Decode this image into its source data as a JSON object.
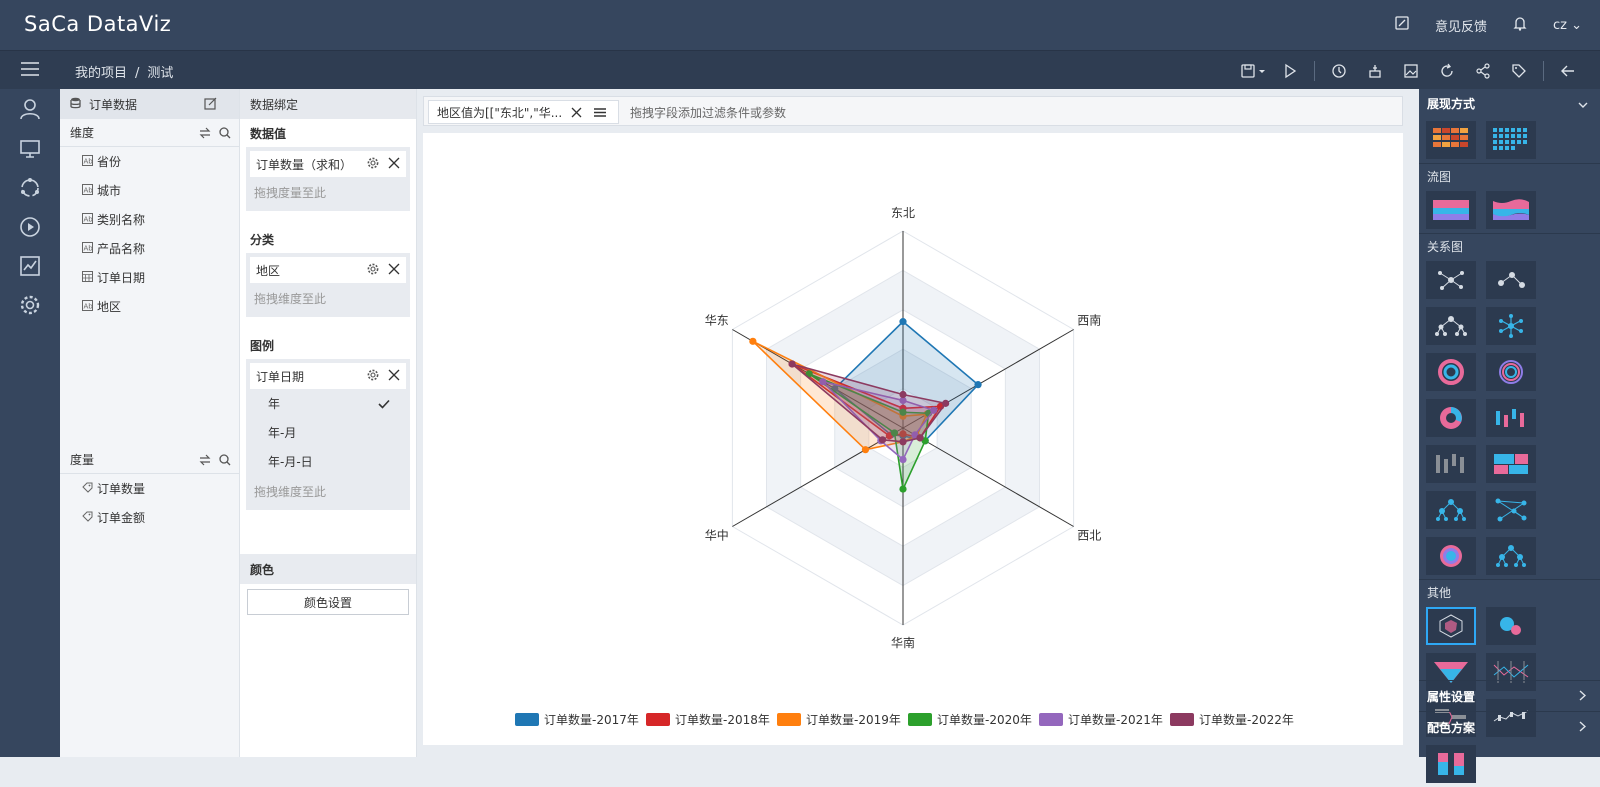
{
  "app": {
    "logo": "SaCa DataViz",
    "feedback": "意见反馈",
    "user": "cz"
  },
  "breadcrumb": {
    "project": "我的项目",
    "sep": "/",
    "current": "测试"
  },
  "fields": {
    "dataset": "订单数据",
    "dimension_title": "维度",
    "dimensions": [
      {
        "label": "省份",
        "icon": "text-field-icon"
      },
      {
        "label": "城市",
        "icon": "text-field-icon"
      },
      {
        "label": "类别名称",
        "icon": "text-field-icon"
      },
      {
        "label": "产品名称",
        "icon": "text-field-icon"
      },
      {
        "label": "订单日期",
        "icon": "date-field-icon"
      },
      {
        "label": "地区",
        "icon": "text-field-icon"
      }
    ],
    "measure_title": "度量",
    "measures": [
      {
        "label": "订单数量",
        "icon": "measure-tag-icon"
      },
      {
        "label": "订单金额",
        "icon": "measure-tag-icon"
      }
    ]
  },
  "binding": {
    "title": "数据绑定",
    "value_title": "数据值",
    "value_chip": "订单数量（求和）",
    "value_hint": "拖拽度量至此",
    "category_title": "分类",
    "category_chip": "地区",
    "category_hint": "拖拽维度至此",
    "legend_title": "图例",
    "legend_chip": "订单日期",
    "legend_options": [
      "年",
      "年-月",
      "年-月-日"
    ],
    "legend_hint": "拖拽维度至此",
    "color_title": "颜色",
    "color_button": "颜色设置"
  },
  "filter": {
    "tag": "地区值为[[\"东北\",\"华...",
    "hint": "拖拽字段添加过滤条件或参数"
  },
  "chart_data": {
    "type": "radar",
    "indicators": [
      "东北",
      "西南",
      "西北",
      "华南",
      "华中",
      "华东"
    ],
    "max": 100,
    "series": [
      {
        "name": "订单数量-2017年",
        "color": "#1f77b4",
        "values": [
          54,
          44,
          13,
          4,
          7,
          40
        ]
      },
      {
        "name": "订单数量-2018年",
        "color": "#d62728",
        "values": [
          10,
          22,
          10,
          3,
          8,
          65
        ]
      },
      {
        "name": "订单数量-2019年",
        "color": "#ff7f0e",
        "values": [
          6,
          14,
          8,
          7,
          22,
          88
        ]
      },
      {
        "name": "订单数量-2020年",
        "color": "#2ca02c",
        "values": [
          8,
          15,
          13,
          31,
          5,
          55
        ]
      },
      {
        "name": "订单数量-2021年",
        "color": "#9467bd",
        "values": [
          14,
          18,
          7,
          16,
          13,
          47
        ]
      },
      {
        "name": "订单数量-2022年",
        "color": "#8c3a60",
        "values": [
          17,
          25,
          10,
          7,
          12,
          65
        ]
      }
    ],
    "legend_position": "bottom"
  },
  "right_panel": {
    "header": "展现方式",
    "sections": [
      {
        "title": "",
        "items": 2
      },
      {
        "title": "流图",
        "items": 2
      },
      {
        "title": "关系图",
        "items": 14
      },
      {
        "title": "其他",
        "items": 7
      }
    ],
    "attr_settings": "属性设置",
    "color_scheme": "配色方案"
  },
  "colors": {
    "accent": "#2ea8f5",
    "dark": "#36465e"
  }
}
